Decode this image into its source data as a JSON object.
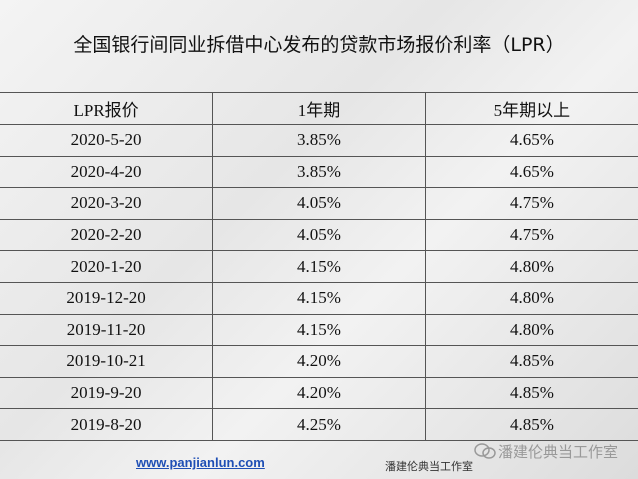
{
  "header": {
    "title": "全国银行间同业拆借中心发布的贷款市场报价利率（LPR）"
  },
  "table": {
    "columns": [
      "LPR报价",
      "1年期",
      "5年期以上"
    ],
    "rows": [
      [
        "2020-5-20",
        "3.85%",
        "4.65%"
      ],
      [
        "2020-4-20",
        "3.85%",
        "4.65%"
      ],
      [
        "2020-3-20",
        "4.05%",
        "4.75%"
      ],
      [
        "2020-2-20",
        "4.05%",
        "4.75%"
      ],
      [
        "2020-1-20",
        "4.15%",
        "4.80%"
      ],
      [
        "2019-12-20",
        "4.15%",
        "4.80%"
      ],
      [
        "2019-11-20",
        "4.15%",
        "4.80%"
      ],
      [
        "2019-10-21",
        "4.20%",
        "4.85%"
      ],
      [
        "2019-9-20",
        "4.20%",
        "4.85%"
      ],
      [
        "2019-8-20",
        "4.25%",
        "4.85%"
      ]
    ]
  },
  "footer": {
    "url": "www.panjianlun.com",
    "caption": "潘建伦典当工作室",
    "watermark": "潘建伦典当工作室"
  }
}
